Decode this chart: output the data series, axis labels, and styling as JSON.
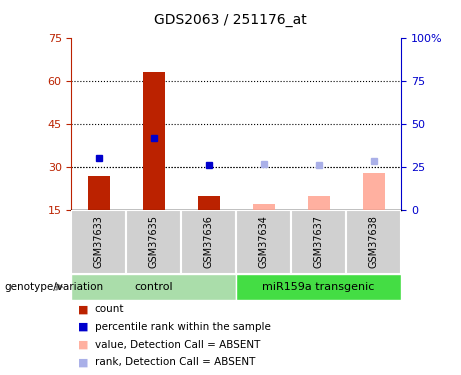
{
  "title": "GDS2063 / 251176_at",
  "samples": [
    "GSM37633",
    "GSM37635",
    "GSM37636",
    "GSM37634",
    "GSM37637",
    "GSM37638"
  ],
  "count_values": [
    27,
    63,
    20,
    null,
    null,
    null
  ],
  "count_absent_values": [
    null,
    null,
    null,
    17,
    20,
    28
  ],
  "rank_values": [
    33,
    40,
    30.5,
    null,
    null,
    null
  ],
  "rank_absent_values": [
    null,
    null,
    null,
    31,
    30.5,
    32
  ],
  "ylim_left": [
    15,
    75
  ],
  "ylim_right": [
    0,
    100
  ],
  "yticks_left": [
    15,
    30,
    45,
    60,
    75
  ],
  "yticks_right": [
    0,
    25,
    50,
    75,
    100
  ],
  "ytick_labels_right": [
    "0",
    "25",
    "50",
    "75",
    "100%"
  ],
  "bar_color_count": "#bb2200",
  "bar_color_count_absent": "#ffb0a0",
  "dot_color_rank": "#0000cc",
  "dot_color_rank_absent": "#aab0e8",
  "grid_yticks": [
    30,
    45,
    60
  ],
  "bar_width": 0.4,
  "ctrl_color": "#aaddaa",
  "mir_color": "#44dd44",
  "legend_items": [
    {
      "label": "count",
      "color": "#bb2200"
    },
    {
      "label": "percentile rank within the sample",
      "color": "#0000cc"
    },
    {
      "label": "value, Detection Call = ABSENT",
      "color": "#ffb0a0"
    },
    {
      "label": "rank, Detection Call = ABSENT",
      "color": "#aab0e8"
    }
  ],
  "fig_width": 4.61,
  "fig_height": 3.75,
  "dpi": 100
}
